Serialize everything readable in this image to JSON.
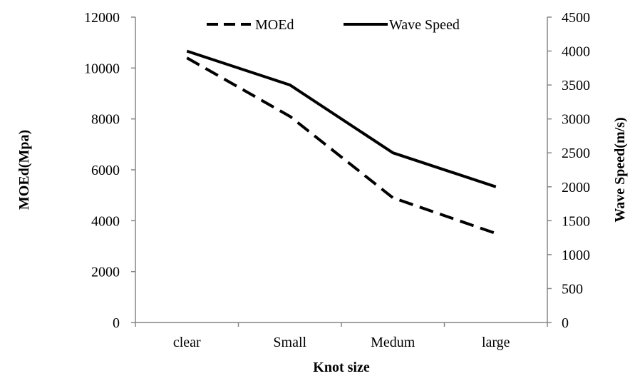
{
  "chart_data": {
    "type": "line",
    "categories": [
      "clear",
      "Small",
      "Medum",
      "large"
    ],
    "series": [
      {
        "name": "MOEd",
        "axis": "left",
        "style": "dashed",
        "color": "#000000",
        "values": [
          10400,
          8100,
          4900,
          3500
        ]
      },
      {
        "name": "Wave Speed",
        "axis": "right",
        "style": "solid",
        "color": "#000000",
        "values": [
          4000,
          3500,
          2500,
          2000
        ]
      }
    ],
    "xlabel": "Knot size",
    "ylabel_left": "MOEd(Mpa)",
    "ylabel_right": "Wave Speed(m/s)",
    "ylim_left": [
      0,
      12000
    ],
    "ylim_right": [
      0,
      4500
    ],
    "yticks_left": [
      0,
      2000,
      4000,
      6000,
      8000,
      10000,
      12000
    ],
    "yticks_right": [
      0,
      500,
      1000,
      1500,
      2000,
      2500,
      3000,
      3500,
      4000,
      4500
    ],
    "grid": false,
    "legend_position": "top-center"
  }
}
